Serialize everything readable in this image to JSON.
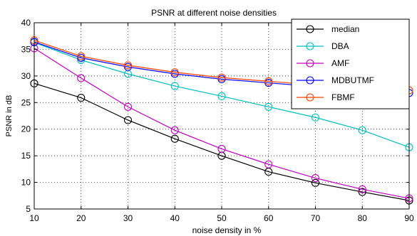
{
  "chart_data": {
    "type": "line",
    "title": "PSNR at different noise densities",
    "xlabel": "noise density in %",
    "ylabel": "PSNR in dB",
    "x": [
      10,
      20,
      30,
      40,
      50,
      60,
      70,
      80,
      90
    ],
    "xlim": [
      10,
      90
    ],
    "ylim": [
      5,
      40
    ],
    "xticks": [
      10,
      20,
      30,
      40,
      50,
      60,
      70,
      80,
      90
    ],
    "yticks": [
      5,
      10,
      15,
      20,
      25,
      30,
      35,
      40
    ],
    "grid": true,
    "legend_position": "top-right",
    "marker": "circle",
    "series": [
      {
        "name": "median",
        "color": "#000000",
        "values": [
          28.6,
          25.9,
          21.7,
          18.2,
          15.0,
          12.0,
          9.9,
          8.2,
          6.6
        ]
      },
      {
        "name": "DBA",
        "color": "#00bfbf",
        "values": [
          36.3,
          33.0,
          30.4,
          28.1,
          26.2,
          24.2,
          22.2,
          19.8,
          16.6
        ]
      },
      {
        "name": "AMF",
        "color": "#bf00bf",
        "values": [
          35.2,
          29.6,
          24.2,
          19.8,
          16.3,
          13.4,
          10.8,
          8.7,
          7.0
        ]
      },
      {
        "name": "MDBUTMF",
        "color": "#0000ff",
        "values": [
          36.4,
          33.4,
          31.7,
          30.4,
          29.4,
          28.7,
          28.0,
          27.4,
          26.8
        ]
      },
      {
        "name": "FBMF",
        "color": "#ff4000",
        "values": [
          36.7,
          33.7,
          32.0,
          30.7,
          29.7,
          29.0,
          28.3,
          27.7,
          27.3
        ]
      }
    ]
  }
}
